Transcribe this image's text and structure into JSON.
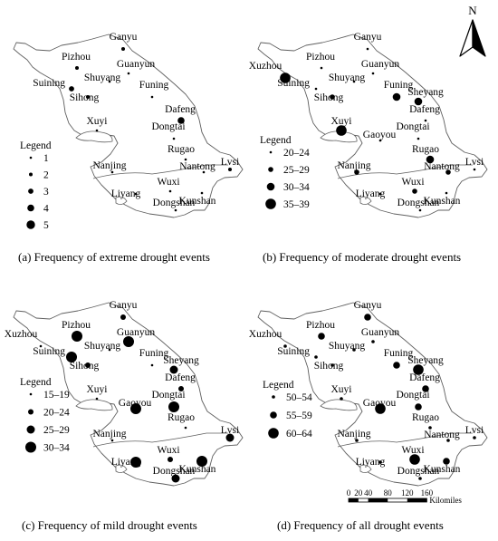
{
  "north_arrow": {
    "label": "N"
  },
  "scale_bar": {
    "ticks": [
      "0",
      "20",
      "40",
      "80",
      "120",
      "160"
    ],
    "unit": "Kilomiles"
  },
  "panels": [
    {
      "caption": "(a) Frequency of extreme drought events",
      "legend_title": "Legend",
      "legend": [
        {
          "label": "1",
          "value": 1
        },
        {
          "label": "2",
          "value": 2
        },
        {
          "label": "3",
          "value": 3
        },
        {
          "label": "4",
          "value": 4
        },
        {
          "label": "5",
          "value": 5
        }
      ],
      "stations": [
        {
          "name": "Ganyu",
          "class": 2
        },
        {
          "name": "Pizhou",
          "class": 2
        },
        {
          "name": "Guanyun",
          "class": 1
        },
        {
          "name": "Shuyang",
          "class": 1
        },
        {
          "name": "Suining",
          "class": 3
        },
        {
          "name": "Funing",
          "class": 1
        },
        {
          "name": "Sihong",
          "class": 2
        },
        {
          "name": "Xuyi",
          "class": 1
        },
        {
          "name": "Dafeng",
          "class": 4
        },
        {
          "name": "Dongtai",
          "class": 1
        },
        {
          "name": "Rugao",
          "class": 1
        },
        {
          "name": "Nantong",
          "class": 1
        },
        {
          "name": "Lvsi",
          "class": 2
        },
        {
          "name": "Nanjing",
          "class": 1
        },
        {
          "name": "Wuxi",
          "class": 1
        },
        {
          "name": "Liyang",
          "class": 1
        },
        {
          "name": "Kunshan",
          "class": 1
        },
        {
          "name": "Dongshan",
          "class": 1
        }
      ]
    },
    {
      "caption": "(b) Frequency of moderate drought events",
      "legend_title": "Legend",
      "legend": [
        {
          "label": "20–24",
          "value": 1
        },
        {
          "label": "25–29",
          "value": 2
        },
        {
          "label": "30–34",
          "value": 3
        },
        {
          "label": "35–39",
          "value": 4
        }
      ],
      "stations": [
        {
          "name": "Ganyu",
          "class": 1
        },
        {
          "name": "Xuzhou",
          "class": 4
        },
        {
          "name": "Pizhou",
          "class": 1
        },
        {
          "name": "Guanyun",
          "class": 1
        },
        {
          "name": "Suining",
          "class": 1
        },
        {
          "name": "Shuyang",
          "class": 1
        },
        {
          "name": "Funing",
          "class": 3
        },
        {
          "name": "Sheyang",
          "class": 3
        },
        {
          "name": "Sihong",
          "class": 2
        },
        {
          "name": "Dafeng",
          "class": 1
        },
        {
          "name": "Xuyi",
          "class": 4
        },
        {
          "name": "Gaoyou",
          "class": 1
        },
        {
          "name": "Dongtai",
          "class": 1
        },
        {
          "name": "Rugao",
          "class": 3
        },
        {
          "name": "Nanjing",
          "class": 2
        },
        {
          "name": "Nantong",
          "class": 2
        },
        {
          "name": "Lvsi",
          "class": 1
        },
        {
          "name": "Liyang",
          "class": 1
        },
        {
          "name": "Wuxi",
          "class": 2
        },
        {
          "name": "Kunshan",
          "class": 1
        },
        {
          "name": "Dongshan",
          "class": 1
        }
      ]
    },
    {
      "caption": "(c) Frequency of mild drought events",
      "legend_title": "Legend",
      "legend": [
        {
          "label": "15–19",
          "value": 1
        },
        {
          "label": "20–24",
          "value": 2
        },
        {
          "label": "25–29",
          "value": 3
        },
        {
          "label": "30–34",
          "value": 4
        }
      ],
      "stations": [
        {
          "name": "Ganyu",
          "class": 2
        },
        {
          "name": "Xuzhou",
          "class": 1
        },
        {
          "name": "Pizhou",
          "class": 4
        },
        {
          "name": "Guanyun",
          "class": 4
        },
        {
          "name": "Suining",
          "class": 4
        },
        {
          "name": "Shuyang",
          "class": 1
        },
        {
          "name": "Funing",
          "class": 1
        },
        {
          "name": "Sheyang",
          "class": 3
        },
        {
          "name": "Sihong",
          "class": 2
        },
        {
          "name": "Dafeng",
          "class": 2
        },
        {
          "name": "Xuyi",
          "class": 1
        },
        {
          "name": "Gaoyou",
          "class": 4
        },
        {
          "name": "Dongtai",
          "class": 4
        },
        {
          "name": "Rugao",
          "class": 1
        },
        {
          "name": "Lvsi",
          "class": 3
        },
        {
          "name": "Nanjing",
          "class": 1
        },
        {
          "name": "Wuxi",
          "class": 2
        },
        {
          "name": "Liyang",
          "class": 4
        },
        {
          "name": "Kunshan",
          "class": 4
        },
        {
          "name": "Dongshan",
          "class": 3
        }
      ]
    },
    {
      "caption": "(d) Frequency of all drought events",
      "legend_title": "Legend",
      "legend": [
        {
          "label": "50–54",
          "value": 1
        },
        {
          "label": "55–59",
          "value": 2
        },
        {
          "label": "60–64",
          "value": 3
        }
      ],
      "stations": [
        {
          "name": "Ganyu",
          "class": 2
        },
        {
          "name": "Xuzhou",
          "class": 1
        },
        {
          "name": "Pizhou",
          "class": 2
        },
        {
          "name": "Guanyun",
          "class": 1
        },
        {
          "name": "Suining",
          "class": 1
        },
        {
          "name": "Shuyang",
          "class": 1
        },
        {
          "name": "Funing",
          "class": 2
        },
        {
          "name": "Sheyang",
          "class": 3
        },
        {
          "name": "Sihong",
          "class": 1
        },
        {
          "name": "Dafeng",
          "class": 2
        },
        {
          "name": "Xuyi",
          "class": 1
        },
        {
          "name": "Gaoyou",
          "class": 3
        },
        {
          "name": "Dongtai",
          "class": 2
        },
        {
          "name": "Rugao",
          "class": 1
        },
        {
          "name": "Lvsi",
          "class": 1
        },
        {
          "name": "Nantong",
          "class": 1
        },
        {
          "name": "Nanjing",
          "class": 1
        },
        {
          "name": "Wuxi",
          "class": 3
        },
        {
          "name": "Liyang",
          "class": 1
        },
        {
          "name": "Kunshan",
          "class": 2
        },
        {
          "name": "Dongshan",
          "class": 1
        }
      ]
    }
  ]
}
